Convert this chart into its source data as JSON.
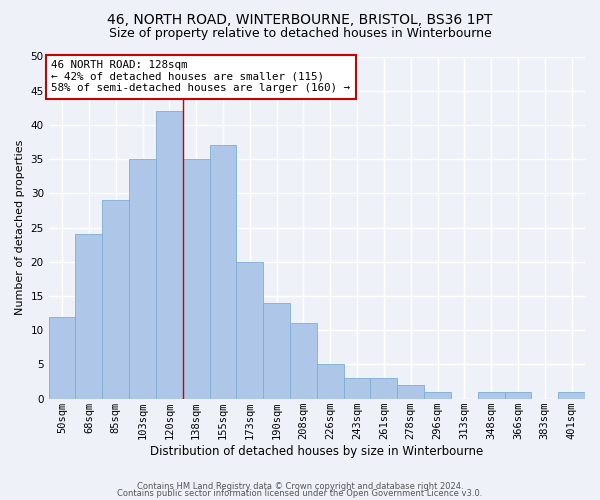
{
  "title1": "46, NORTH ROAD, WINTERBOURNE, BRISTOL, BS36 1PT",
  "title2": "Size of property relative to detached houses in Winterbourne",
  "xlabel": "Distribution of detached houses by size in Winterbourne",
  "ylabel": "Number of detached properties",
  "bar_labels": [
    "50sqm",
    "68sqm",
    "85sqm",
    "103sqm",
    "120sqm",
    "138sqm",
    "155sqm",
    "173sqm",
    "190sqm",
    "208sqm",
    "226sqm",
    "243sqm",
    "261sqm",
    "278sqm",
    "296sqm",
    "313sqm",
    "348sqm",
    "366sqm",
    "383sqm",
    "401sqm"
  ],
  "bar_values": [
    12,
    24,
    29,
    35,
    42,
    35,
    37,
    20,
    14,
    11,
    5,
    3,
    3,
    2,
    1,
    0,
    1,
    1,
    0,
    1
  ],
  "bar_color": "#aec6e8",
  "bar_edgecolor": "#7aafd4",
  "vline_x": 4.5,
  "vline_color": "#cc0000",
  "annotation_title": "46 NORTH ROAD: 128sqm",
  "annotation_line2": "← 42% of detached houses are smaller (115)",
  "annotation_line3": "58% of semi-detached houses are larger (160) →",
  "annotation_box_color": "#ffffff",
  "annotation_box_edgecolor": "#cc0000",
  "ylim": [
    0,
    50
  ],
  "yticks": [
    0,
    5,
    10,
    15,
    20,
    25,
    30,
    35,
    40,
    45,
    50
  ],
  "footer1": "Contains HM Land Registry data © Crown copyright and database right 2024.",
  "footer2": "Contains public sector information licensed under the Open Government Licence v3.0.",
  "bg_color": "#eef2f8",
  "grid_color": "#ffffff",
  "title1_fontsize": 10,
  "title2_fontsize": 9,
  "annotation_fontsize": 7.8,
  "xlabel_fontsize": 8.5,
  "ylabel_fontsize": 8,
  "footer_fontsize": 6.0,
  "tick_fontsize": 7.5
}
